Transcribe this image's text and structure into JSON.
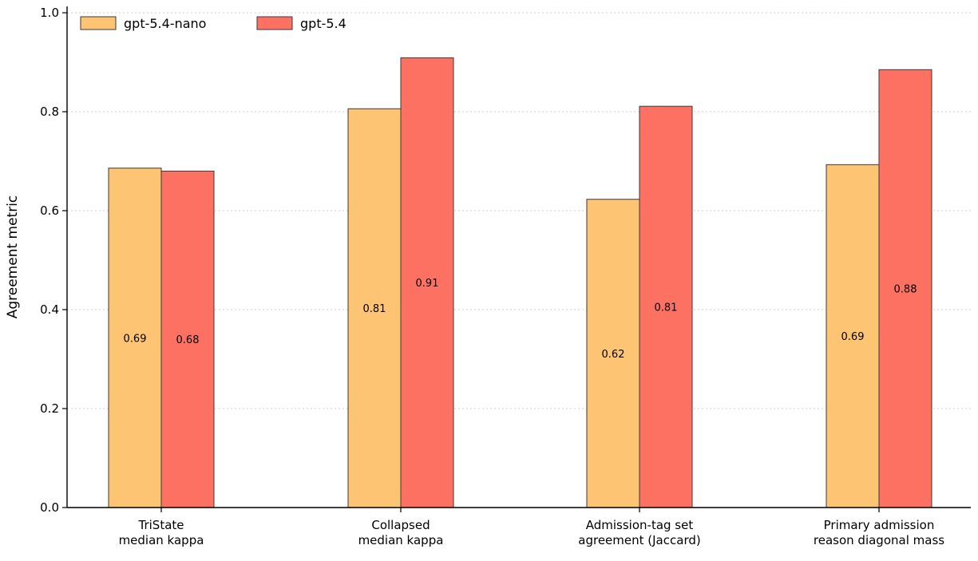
{
  "chart_data": {
    "type": "bar",
    "title": "",
    "xlabel": "",
    "ylabel": "Agreement metric",
    "ylim": [
      0,
      1.0
    ],
    "yticks": [
      "0.0",
      "0.2",
      "0.4",
      "0.6",
      "0.8",
      "1.0"
    ],
    "grid": "y-dotted",
    "legend_position": "top-left",
    "categories": [
      [
        "TriState",
        "median kappa"
      ],
      [
        "Collapsed",
        "median kappa"
      ],
      [
        "Admission-tag set",
        "agreement (Jaccard)"
      ],
      [
        "Primary admission",
        "reason diagonal mass"
      ]
    ],
    "series": [
      {
        "name": "gpt-5.4-nano",
        "color": "#fdc473",
        "values": [
          0.686,
          0.806,
          0.623,
          0.693
        ],
        "labels": [
          "0.69",
          "0.81",
          "0.62",
          "0.69"
        ]
      },
      {
        "name": "gpt-5.4",
        "color": "#fd7162",
        "values": [
          0.68,
          0.909,
          0.811,
          0.885
        ],
        "labels": [
          "0.68",
          "0.91",
          "0.81",
          "0.88"
        ]
      }
    ]
  }
}
